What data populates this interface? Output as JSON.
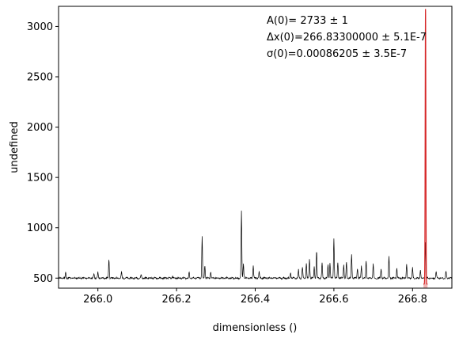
{
  "chart_data": {
    "type": "line",
    "xlabel": "dimensionless ()",
    "ylabel": "undefined",
    "xlim": [
      265.9,
      266.9
    ],
    "ylim": [
      400,
      3200
    ],
    "x_ticks": [
      266.0,
      266.2,
      266.4,
      266.6,
      266.8
    ],
    "x_tick_labels": [
      "266.0",
      "266.2",
      "266.4",
      "266.6",
      "266.8"
    ],
    "y_ticks": [
      500,
      1000,
      1500,
      2000,
      2500,
      3000
    ],
    "y_tick_labels": [
      "500",
      "1000",
      "1500",
      "2000",
      "2500",
      "3000"
    ],
    "grid": false,
    "series": [
      {
        "kind": "spectrum",
        "color": "#000000",
        "baseline": 500,
        "range": [
          265.9,
          266.9
        ],
        "peaks": [
          [
            265.918,
            560
          ],
          [
            265.99,
            545
          ],
          [
            266.0,
            555
          ],
          [
            266.028,
            690
          ],
          [
            266.06,
            560
          ],
          [
            266.11,
            535
          ],
          [
            266.19,
            520
          ],
          [
            266.232,
            560
          ],
          [
            266.265,
            910
          ],
          [
            266.272,
            630
          ],
          [
            266.287,
            560
          ],
          [
            266.365,
            1160
          ],
          [
            266.37,
            650
          ],
          [
            266.395,
            625
          ],
          [
            266.41,
            565
          ],
          [
            266.49,
            550
          ],
          [
            266.51,
            580
          ],
          [
            266.52,
            610
          ],
          [
            266.53,
            650
          ],
          [
            266.538,
            690
          ],
          [
            266.55,
            620
          ],
          [
            266.556,
            770
          ],
          [
            266.57,
            650
          ],
          [
            266.585,
            635
          ],
          [
            266.59,
            660
          ],
          [
            266.6,
            900
          ],
          [
            266.61,
            660
          ],
          [
            266.625,
            630
          ],
          [
            266.632,
            660
          ],
          [
            266.645,
            740
          ],
          [
            266.66,
            600
          ],
          [
            266.67,
            620
          ],
          [
            266.682,
            675
          ],
          [
            266.7,
            640
          ],
          [
            266.72,
            590
          ],
          [
            266.74,
            710
          ],
          [
            266.76,
            600
          ],
          [
            266.785,
            640
          ],
          [
            266.8,
            600
          ],
          [
            266.82,
            580
          ],
          [
            266.86,
            560
          ],
          [
            266.885,
            565
          ]
        ]
      },
      {
        "kind": "fit",
        "color": "#d62728",
        "baseline": 500,
        "amplitude": 2733,
        "center": 266.833,
        "sigma": 0.00086205
      }
    ],
    "annotations": [
      "A(0)=    2733 ±        1",
      "Δx(0)=266.83300000 ±   5.1E-7",
      "σ(0)=0.00086205 ±   3.5E-7"
    ]
  }
}
